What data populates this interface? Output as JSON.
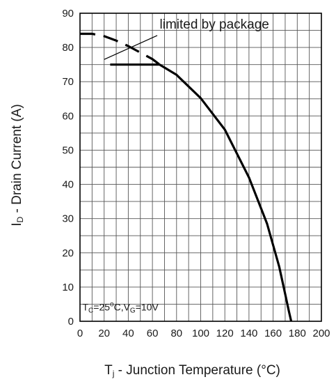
{
  "chart_data": {
    "type": "line",
    "title": "",
    "xlabel": {
      "main": "T",
      "sub": "j",
      "rest": " - Junction Temperature (°C)"
    },
    "ylabel": {
      "main": "I",
      "sub": "D",
      "rest": " - Drain Current (A)"
    },
    "xlim": [
      0,
      200
    ],
    "ylim": [
      0,
      90
    ],
    "x_ticks": [
      0,
      20,
      40,
      60,
      80,
      100,
      120,
      140,
      160,
      180,
      200
    ],
    "y_ticks": [
      0,
      10,
      20,
      30,
      40,
      50,
      60,
      70,
      80,
      90
    ],
    "x_tick_labels": [
      "0",
      "20",
      "40",
      "60",
      "80",
      "100",
      "120",
      "140",
      "160",
      "180",
      "200"
    ],
    "y_tick_labels": [
      "0",
      "10",
      "20",
      "30",
      "40",
      "50",
      "60",
      "70",
      "80",
      "90"
    ],
    "x_minor_step": 10,
    "y_minor_step": 5,
    "grid": true,
    "series": [
      {
        "style": "solid",
        "color": "#000000",
        "x": [
          25,
          66,
          80,
          100,
          120,
          140,
          155,
          165,
          170,
          173,
          175
        ],
        "y": [
          75,
          75,
          72,
          65.2,
          56,
          42,
          28.5,
          16,
          8,
          3,
          0
        ]
      },
      {
        "style": "dashed",
        "color": "#000000",
        "x": [
          0,
          10,
          20,
          30,
          40,
          50,
          60,
          66
        ],
        "y": [
          84,
          84,
          83.3,
          82,
          80.4,
          78.5,
          76.6,
          75
        ]
      }
    ],
    "annotations": {
      "limited": {
        "text": "limited by package"
      },
      "conditions": {
        "t": "T",
        "t_sub": "C",
        "t_val": "=25",
        "deg": "o",
        "c": "C,V",
        "v_sub": "G",
        "v_val": "=10V"
      }
    }
  }
}
